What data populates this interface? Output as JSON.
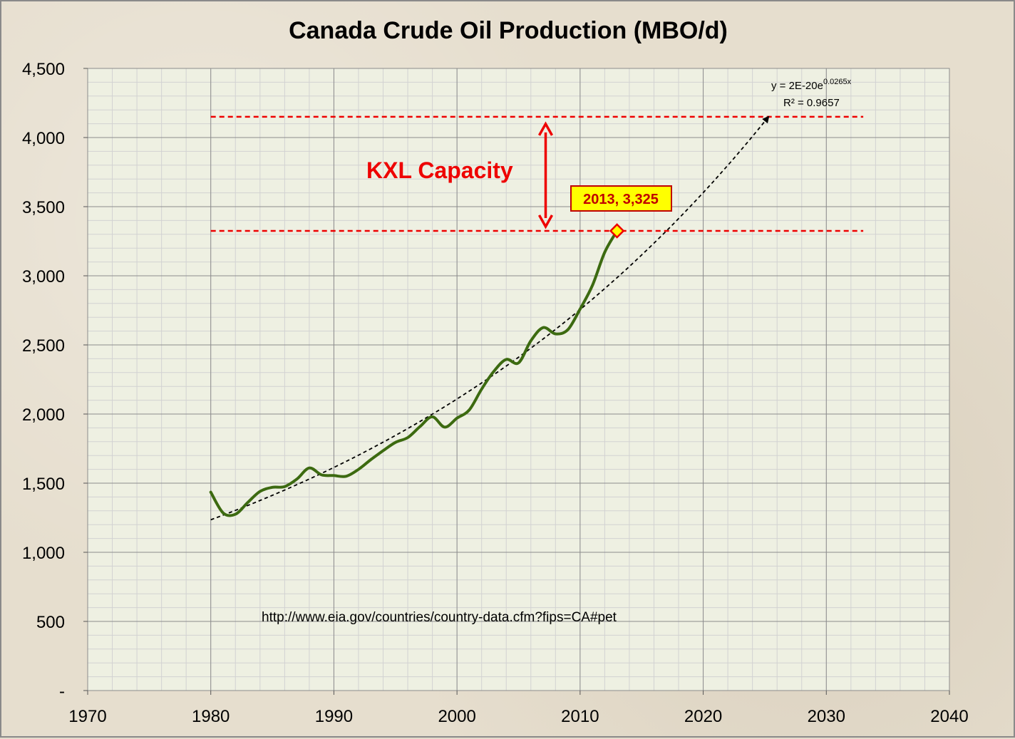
{
  "chart_data": {
    "type": "line",
    "title": "Canada Crude Oil Production (MBO/d)",
    "xlim": [
      1970,
      2040
    ],
    "ylim": [
      0,
      4500
    ],
    "x_ticks": [
      "1970",
      "1980",
      "1990",
      "2000",
      "2010",
      "2020",
      "2030",
      "2040"
    ],
    "y_ticks": [
      "-",
      "500",
      "1,000",
      "1,500",
      "2,000",
      "2,500",
      "3,000",
      "3,500",
      "4,000",
      "4,500"
    ],
    "grid": true,
    "series": [
      {
        "color": "#3c6a10",
        "x": [
          1980,
          1981,
          1982,
          1983,
          1984,
          1985,
          1986,
          1987,
          1988,
          1989,
          1990,
          1991,
          1992,
          1993,
          1994,
          1995,
          1996,
          1997,
          1998,
          1999,
          2000,
          2001,
          2002,
          2003,
          2004,
          2005,
          2006,
          2007,
          2008,
          2009,
          2010,
          2011,
          2012,
          2013
        ],
        "y": [
          1435,
          1285,
          1275,
          1360,
          1440,
          1470,
          1475,
          1530,
          1610,
          1560,
          1555,
          1550,
          1600,
          1670,
          1735,
          1795,
          1830,
          1910,
          1980,
          1905,
          1970,
          2030,
          2180,
          2310,
          2395,
          2370,
          2530,
          2625,
          2580,
          2610,
          2760,
          2930,
          3170,
          3325
        ]
      }
    ],
    "trendline": {
      "type": "exponential",
      "color": "#000000",
      "x_start": 1980,
      "x_end": 2025.3,
      "y_start": 1235,
      "y_end": 4150,
      "equation_main": "y = 2E-20e",
      "equation_exp": "0.0265x",
      "r2": "R² = 0.9657"
    },
    "reference_lines": [
      {
        "y": 4150,
        "x_start": 1980,
        "x_end": 2033,
        "color": "#ee0000"
      },
      {
        "y": 3325,
        "x_start": 1980,
        "x_end": 2033,
        "color": "#ee0000"
      }
    ],
    "annotations": {
      "kxl_label": "KXL Capacity",
      "kxl_arrow_x": 2007.2,
      "callout_label": "2013,  3,325",
      "callout_point": {
        "x": 2013,
        "y": 3325
      },
      "source_url": "http://www.eia.gov/countries/country-data.cfm?fips=CA#pet"
    }
  }
}
